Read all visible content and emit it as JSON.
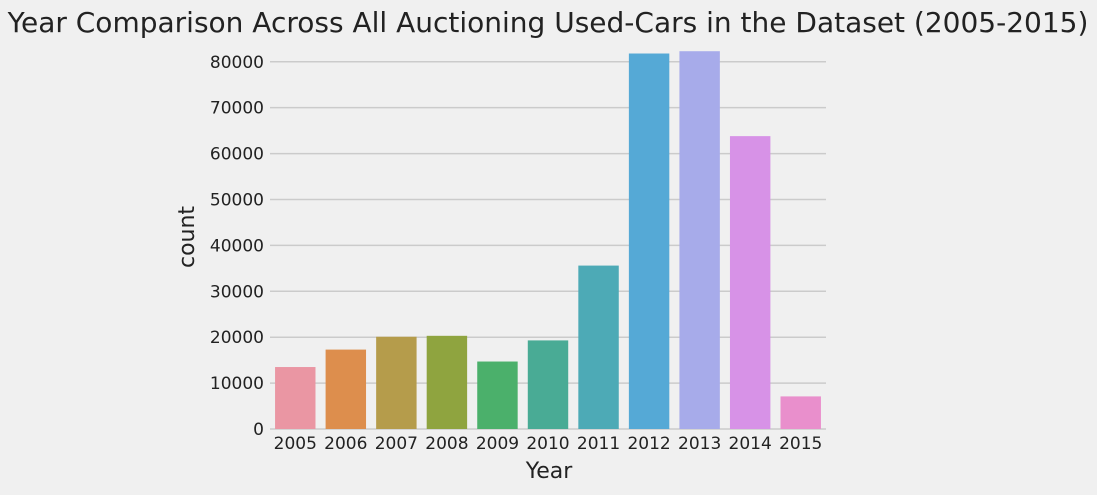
{
  "chart_data": {
    "type": "bar",
    "title": "Year Comparison Across All Auctioning Used-Cars in the Dataset (2005-2015)",
    "xlabel": "Year",
    "ylabel": "count",
    "categories": [
      "2005",
      "2006",
      "2007",
      "2008",
      "2009",
      "2010",
      "2011",
      "2012",
      "2013",
      "2014",
      "2015"
    ],
    "values": [
      13500,
      17300,
      20100,
      20300,
      14700,
      19300,
      35600,
      81800,
      82300,
      63800,
      7100
    ],
    "colors": [
      "#ea96a3",
      "#dd8e4d",
      "#b59c4b",
      "#8fa43f",
      "#4bb06b",
      "#49ab95",
      "#4daab6",
      "#55a9d6",
      "#a7abea",
      "#d792e7",
      "#e98fcc"
    ],
    "ylim": [
      0,
      83000
    ],
    "yticks": [
      0,
      10000,
      20000,
      30000,
      40000,
      50000,
      60000,
      70000,
      80000
    ],
    "grid": "horizontal",
    "background": "#f0f0f0",
    "grid_color": "#cbcbcb"
  }
}
